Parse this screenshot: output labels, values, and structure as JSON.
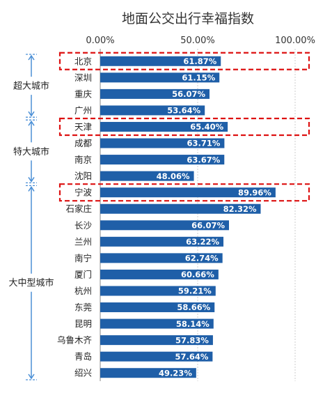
{
  "chart_data": {
    "type": "bar",
    "orientation": "horizontal",
    "title": "地面公交出行幸福指数",
    "xlim": [
      0,
      100
    ],
    "xticks": [
      "0.00%",
      "50.00%",
      "100.00%"
    ],
    "categories": [
      "北京",
      "深圳",
      "重庆",
      "广州",
      "天津",
      "成都",
      "南京",
      "沈阳",
      "宁波",
      "石家庄",
      "长沙",
      "兰州",
      "南宁",
      "厦门",
      "杭州",
      "东莞",
      "昆明",
      "乌鲁木齐",
      "青岛",
      "绍兴"
    ],
    "values": [
      61.87,
      61.15,
      56.07,
      53.64,
      65.4,
      63.71,
      63.67,
      48.06,
      89.96,
      82.32,
      66.07,
      63.22,
      62.74,
      60.66,
      59.21,
      58.66,
      58.14,
      57.83,
      57.64,
      49.23
    ],
    "value_labels": [
      "61.87%",
      "61.15%",
      "56.07%",
      "53.64%",
      "65.40%",
      "63.71%",
      "63.67%",
      "48.06%",
      "89.96%",
      "82.32%",
      "66.07%",
      "63.22%",
      "62.74%",
      "60.66%",
      "59.21%",
      "58.66%",
      "58.14%",
      "57.83%",
      "57.64%",
      "49.23%"
    ],
    "groups": [
      {
        "name": "超大城市",
        "start": 0,
        "end": 3
      },
      {
        "name": "特大城市",
        "start": 4,
        "end": 7
      },
      {
        "name": "大中型城市",
        "start": 8,
        "end": 19
      }
    ],
    "highlighted": [
      "北京",
      "天津",
      "宁波"
    ],
    "colors": {
      "bar": "#1f5fa8",
      "highlight_box": "#dd1111",
      "group_bracket": "#4a8fd6",
      "grid": "#cccccc"
    }
  }
}
